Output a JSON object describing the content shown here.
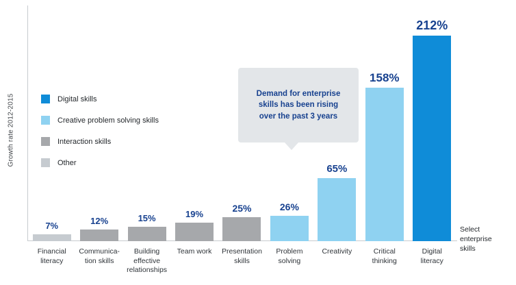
{
  "y_axis_label": "Growth rate 2012-2015",
  "side_note": "Select\nenterprise\nskills",
  "legend": {
    "items": [
      {
        "label": "Digital skills",
        "color": "#0f8cd8"
      },
      {
        "label": "Creative problem solving skills",
        "color": "#8fd2f1"
      },
      {
        "label": "Interaction skills",
        "color": "#a6a8ab"
      },
      {
        "label": "Other",
        "color": "#c6cbd0"
      }
    ]
  },
  "chart_data": {
    "type": "bar",
    "title": "",
    "xlabel": "",
    "ylabel": "Growth rate 2012-2015",
    "ylim": [
      0,
      220
    ],
    "grid": false,
    "legend_position": "left",
    "categories": [
      "Financial\nliteracy",
      "Communica-\ntion skills",
      "Building\neffective\nrelationships",
      "Team work",
      "Presentation\nskills",
      "Problem\nsolving",
      "Creativity",
      "Critical\nthinking",
      "Digital\nliteracy"
    ],
    "values": [
      7,
      12,
      15,
      19,
      25,
      26,
      65,
      158,
      212
    ],
    "value_labels": [
      "7%",
      "12%",
      "15%",
      "19%",
      "25%",
      "26%",
      "65%",
      "158%",
      "212%"
    ],
    "bar_series": [
      "other",
      "interaction",
      "interaction",
      "interaction",
      "interaction",
      "creative",
      "creative",
      "creative",
      "digital"
    ],
    "series_colors": {
      "digital": "#0f8cd8",
      "creative": "#8fd2f1",
      "interaction": "#a6a8ab",
      "other": "#c6cbd0"
    },
    "series_names": {
      "digital": "Digital skills",
      "creative": "Creative problem solving skills",
      "interaction": "Interaction skills",
      "other": "Other"
    },
    "value_label_color": "#17418f",
    "annotation": "Demand for enterprise\nskills has been rising\nover the past 3 years"
  }
}
